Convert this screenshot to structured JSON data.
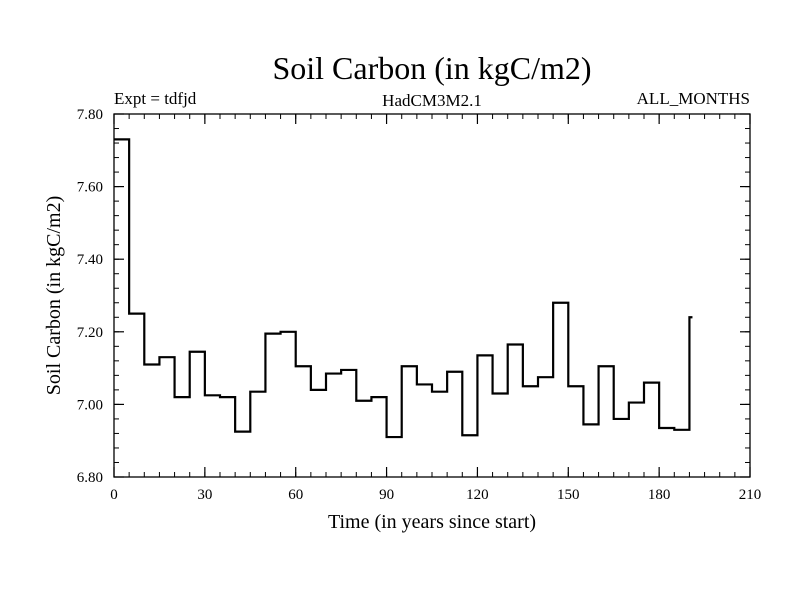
{
  "chart_data": {
    "type": "line",
    "style": "step",
    "title": "Soil Carbon (in kgC/m2)",
    "subtitle_left": "Expt = tdfjd",
    "subtitle_center": "HadCM3M2.1",
    "subtitle_right": "ALL_MONTHS",
    "xlabel": "Time (in years since start)",
    "ylabel": "Soil Carbon (in kgC/m2)",
    "xlim": [
      0,
      210
    ],
    "ylim": [
      6.8,
      7.8
    ],
    "xticks": [
      "0",
      "30",
      "60",
      "90",
      "120",
      "150",
      "180",
      "210"
    ],
    "yticks": [
      "6.80",
      "7.00",
      "7.20",
      "7.40",
      "7.60",
      "7.80"
    ],
    "xtick_values": [
      0,
      30,
      60,
      90,
      120,
      150,
      180,
      210
    ],
    "ytick_values": [
      6.8,
      7.0,
      7.2,
      7.4,
      7.6,
      7.8
    ],
    "series": [
      {
        "name": "Soil Carbon",
        "color": "#000000",
        "steps": [
          {
            "x0": 0,
            "x1": 5,
            "y": 7.73
          },
          {
            "x0": 5,
            "x1": 10,
            "y": 7.25
          },
          {
            "x0": 10,
            "x1": 15,
            "y": 7.11
          },
          {
            "x0": 15,
            "x1": 20,
            "y": 7.13
          },
          {
            "x0": 20,
            "x1": 25,
            "y": 7.02
          },
          {
            "x0": 25,
            "x1": 30,
            "y": 7.145
          },
          {
            "x0": 30,
            "x1": 35,
            "y": 7.025
          },
          {
            "x0": 35,
            "x1": 40,
            "y": 7.02
          },
          {
            "x0": 40,
            "x1": 45,
            "y": 6.925
          },
          {
            "x0": 45,
            "x1": 50,
            "y": 7.035
          },
          {
            "x0": 50,
            "x1": 55,
            "y": 7.195
          },
          {
            "x0": 55,
            "x1": 60,
            "y": 7.2
          },
          {
            "x0": 60,
            "x1": 65,
            "y": 7.105
          },
          {
            "x0": 65,
            "x1": 70,
            "y": 7.04
          },
          {
            "x0": 70,
            "x1": 75,
            "y": 7.085
          },
          {
            "x0": 75,
            "x1": 80,
            "y": 7.095
          },
          {
            "x0": 80,
            "x1": 85,
            "y": 7.01
          },
          {
            "x0": 85,
            "x1": 90,
            "y": 7.02
          },
          {
            "x0": 90,
            "x1": 95,
            "y": 6.91
          },
          {
            "x0": 95,
            "x1": 100,
            "y": 7.105
          },
          {
            "x0": 100,
            "x1": 105,
            "y": 7.055
          },
          {
            "x0": 105,
            "x1": 110,
            "y": 7.035
          },
          {
            "x0": 110,
            "x1": 115,
            "y": 7.09
          },
          {
            "x0": 115,
            "x1": 120,
            "y": 6.915
          },
          {
            "x0": 120,
            "x1": 125,
            "y": 7.135
          },
          {
            "x0": 125,
            "x1": 130,
            "y": 7.03
          },
          {
            "x0": 130,
            "x1": 135,
            "y": 7.165
          },
          {
            "x0": 135,
            "x1": 140,
            "y": 7.05
          },
          {
            "x0": 140,
            "x1": 145,
            "y": 7.075
          },
          {
            "x0": 145,
            "x1": 150,
            "y": 7.28
          },
          {
            "x0": 150,
            "x1": 155,
            "y": 7.05
          },
          {
            "x0": 155,
            "x1": 160,
            "y": 6.945
          },
          {
            "x0": 160,
            "x1": 165,
            "y": 7.105
          },
          {
            "x0": 165,
            "x1": 170,
            "y": 6.96
          },
          {
            "x0": 170,
            "x1": 175,
            "y": 7.005
          },
          {
            "x0": 175,
            "x1": 180,
            "y": 7.06
          },
          {
            "x0": 180,
            "x1": 185,
            "y": 6.935
          },
          {
            "x0": 185,
            "x1": 190,
            "y": 6.93
          },
          {
            "x0": 190,
            "x1": 191,
            "y": 7.24
          }
        ]
      }
    ]
  }
}
